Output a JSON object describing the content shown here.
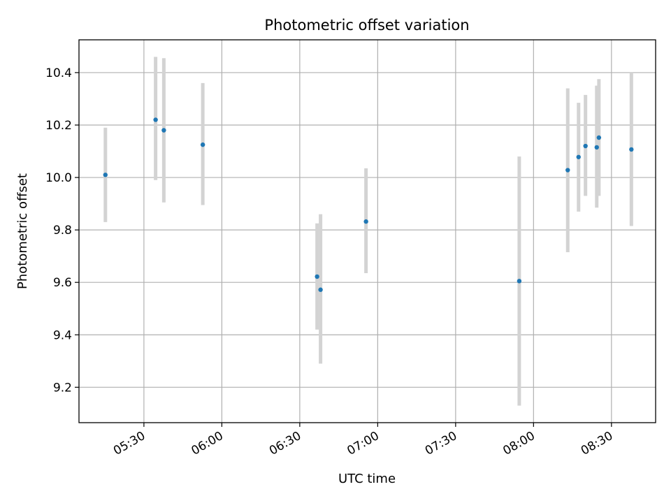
{
  "chart_data": {
    "type": "scatter",
    "title": "Photometric offset variation",
    "xlabel": "UTC time",
    "ylabel": "Photometric offset",
    "grid": true,
    "xlim": [
      "05:05",
      "08:47"
    ],
    "ylim": [
      9.065,
      10.525
    ],
    "x_ticks": [
      "05:30",
      "06:00",
      "06:30",
      "07:00",
      "07:30",
      "08:00",
      "08:30"
    ],
    "y_ticks": [
      "9.2",
      "9.4",
      "9.6",
      "9.8",
      "10.0",
      "10.2",
      "10.4"
    ],
    "colors": {
      "point": "#1f77b4",
      "errorbar": "#d3d3d3",
      "grid": "#b0b0b0"
    },
    "points": [
      {
        "x": "05:15:10",
        "y": 10.01,
        "y_low": 9.83,
        "y_high": 10.19
      },
      {
        "x": "05:34:30",
        "y": 10.22,
        "y_low": 9.99,
        "y_high": 10.46
      },
      {
        "x": "05:37:40",
        "y": 10.18,
        "y_low": 9.905,
        "y_high": 10.455
      },
      {
        "x": "05:52:40",
        "y": 10.125,
        "y_low": 9.895,
        "y_high": 10.36
      },
      {
        "x": "06:36:40",
        "y": 9.622,
        "y_low": 9.42,
        "y_high": 9.825
      },
      {
        "x": "06:38:00",
        "y": 9.572,
        "y_low": 9.29,
        "y_high": 9.86
      },
      {
        "x": "06:55:30",
        "y": 9.832,
        "y_low": 9.635,
        "y_high": 10.035
      },
      {
        "x": "07:54:30",
        "y": 9.605,
        "y_low": 9.13,
        "y_high": 10.08
      },
      {
        "x": "08:13:10",
        "y": 10.028,
        "y_low": 9.715,
        "y_high": 10.34
      },
      {
        "x": "08:17:20",
        "y": 10.078,
        "y_low": 9.87,
        "y_high": 10.285
      },
      {
        "x": "08:20:00",
        "y": 10.12,
        "y_low": 9.93,
        "y_high": 10.315
      },
      {
        "x": "08:24:20",
        "y": 10.115,
        "y_low": 9.885,
        "y_high": 10.35
      },
      {
        "x": "08:25:10",
        "y": 10.152,
        "y_low": 9.93,
        "y_high": 10.375
      },
      {
        "x": "08:37:40",
        "y": 10.107,
        "y_low": 9.815,
        "y_high": 10.4
      }
    ]
  }
}
